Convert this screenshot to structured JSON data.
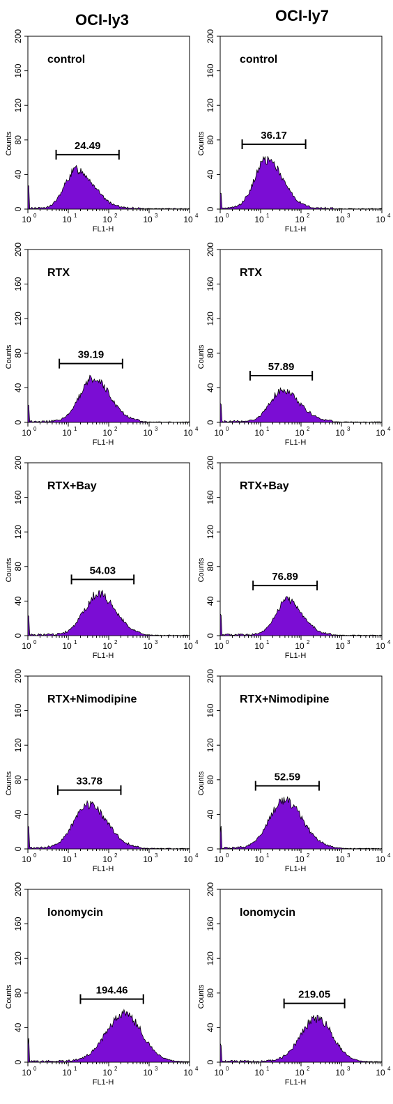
{
  "columns": [
    {
      "title": "OCI-ly3"
    },
    {
      "title": "OCI-ly7"
    }
  ],
  "colors": {
    "fill": "#7B0DD4",
    "outline": "#000000"
  },
  "chart_data": [
    {
      "type": "area",
      "column": "OCI-ly3",
      "label": "control",
      "gate_value": "24.49",
      "gate_range": [
        5,
        180
      ],
      "xlabel": "FL1-H",
      "ylabel": "Counts",
      "xscale": "log",
      "xlim": [
        1,
        10000
      ],
      "ylim": [
        0,
        200
      ],
      "x_ticks": [
        "10",
        "10",
        "10",
        "10",
        "10"
      ],
      "x_tick_exp": [
        "0",
        "1",
        "2",
        "3",
        "4"
      ],
      "y_ticks": [
        "0",
        "40",
        "80",
        "120",
        "160",
        "200"
      ],
      "peak_x": 16,
      "peak_y": 45,
      "spread": 0.42,
      "skew": 0.55
    },
    {
      "type": "area",
      "column": "OCI-ly7",
      "label": "control",
      "gate_value": "36.17",
      "gate_range": [
        3.5,
        130
      ],
      "xlabel": "FL1-H",
      "ylabel": "Counts",
      "xscale": "log",
      "xlim": [
        1,
        10000
      ],
      "ylim": [
        0,
        200
      ],
      "x_ticks": [
        "10",
        "10",
        "10",
        "10",
        "10"
      ],
      "x_tick_exp": [
        "0",
        "1",
        "2",
        "3",
        "4"
      ],
      "y_ticks": [
        "0",
        "40",
        "80",
        "120",
        "160",
        "200"
      ],
      "peak_x": 14,
      "peak_y": 57,
      "spread": 0.4,
      "skew": 0.6
    },
    {
      "type": "area",
      "column": "OCI-ly3",
      "label": "RTX",
      "gate_value": "39.19",
      "gate_range": [
        6,
        220
      ],
      "xlabel": "FL1-H",
      "ylabel": "Counts",
      "xscale": "log",
      "xlim": [
        1,
        10000
      ],
      "ylim": [
        0,
        200
      ],
      "x_ticks": [
        "10",
        "10",
        "10",
        "10",
        "10"
      ],
      "x_tick_exp": [
        "0",
        "1",
        "2",
        "3",
        "4"
      ],
      "y_ticks": [
        "0",
        "40",
        "80",
        "120",
        "160",
        "200"
      ],
      "peak_x": 40,
      "peak_y": 50,
      "spread": 0.42,
      "skew": 0.65
    },
    {
      "type": "area",
      "column": "OCI-ly7",
      "label": "RTX",
      "gate_value": "57.89",
      "gate_range": [
        5.5,
        190
      ],
      "xlabel": "FL1-H",
      "ylabel": "Counts",
      "xscale": "log",
      "xlim": [
        1,
        10000
      ],
      "ylim": [
        0,
        200
      ],
      "x_ticks": [
        "10",
        "10",
        "10",
        "10",
        "10"
      ],
      "x_tick_exp": [
        "0",
        "1",
        "2",
        "3",
        "4"
      ],
      "y_ticks": [
        "0",
        "40",
        "80",
        "120",
        "160",
        "200"
      ],
      "peak_x": 35,
      "peak_y": 36,
      "spread": 0.42,
      "skew": 0.6
    },
    {
      "type": "area",
      "column": "OCI-ly3",
      "label": "RTX+Bay",
      "gate_value": "54.03",
      "gate_range": [
        12,
        420
      ],
      "xlabel": "FL1-H",
      "ylabel": "Counts",
      "xscale": "log",
      "xlim": [
        1,
        10000
      ],
      "ylim": [
        0,
        200
      ],
      "x_ticks": [
        "10",
        "10",
        "10",
        "10",
        "10"
      ],
      "x_tick_exp": [
        "0",
        "1",
        "2",
        "3",
        "4"
      ],
      "y_ticks": [
        "0",
        "40",
        "80",
        "120",
        "160",
        "200"
      ],
      "peak_x": 55,
      "peak_y": 47,
      "spread": 0.42,
      "skew": 0.7
    },
    {
      "type": "area",
      "column": "OCI-ly7",
      "label": "RTX+Bay",
      "gate_value": "76.89",
      "gate_range": [
        6.5,
        250
      ],
      "xlabel": "FL1-H",
      "ylabel": "Counts",
      "xscale": "log",
      "xlim": [
        1,
        10000
      ],
      "ylim": [
        0,
        200
      ],
      "x_ticks": [
        "10",
        "10",
        "10",
        "10",
        "10"
      ],
      "x_tick_exp": [
        "0",
        "1",
        "2",
        "3",
        "4"
      ],
      "y_ticks": [
        "0",
        "40",
        "80",
        "120",
        "160",
        "200"
      ],
      "peak_x": 45,
      "peak_y": 40,
      "spread": 0.38,
      "skew": 0.6
    },
    {
      "type": "area",
      "column": "OCI-ly3",
      "label": "RTX+Nimodipine",
      "gate_value": "33.78",
      "gate_range": [
        5.5,
        200
      ],
      "xlabel": "FL1-H",
      "ylabel": "Counts",
      "xscale": "log",
      "xlim": [
        1,
        10000
      ],
      "ylim": [
        0,
        200
      ],
      "x_ticks": [
        "10",
        "10",
        "10",
        "10",
        "10"
      ],
      "x_tick_exp": [
        "0",
        "1",
        "2",
        "3",
        "4"
      ],
      "y_ticks": [
        "0",
        "40",
        "80",
        "120",
        "160",
        "200"
      ],
      "peak_x": 32,
      "peak_y": 50,
      "spread": 0.45,
      "skew": 0.7
    },
    {
      "type": "area",
      "column": "OCI-ly7",
      "label": "RTX+Nimodipine",
      "gate_value": "52.59",
      "gate_range": [
        7.5,
        280
      ],
      "xlabel": "FL1-H",
      "ylabel": "Counts",
      "xscale": "log",
      "xlim": [
        1,
        10000
      ],
      "ylim": [
        0,
        200
      ],
      "x_ticks": [
        "10",
        "10",
        "10",
        "10",
        "10"
      ],
      "x_tick_exp": [
        "0",
        "1",
        "2",
        "3",
        "4"
      ],
      "y_ticks": [
        "0",
        "40",
        "80",
        "120",
        "160",
        "200"
      ],
      "peak_x": 38,
      "peak_y": 55,
      "spread": 0.45,
      "skew": 0.7
    },
    {
      "type": "area",
      "column": "OCI-ly3",
      "label": "Ionomycin",
      "gate_value": "194.46",
      "gate_range": [
        20,
        720
      ],
      "xlabel": "FL1-H",
      "ylabel": "Counts",
      "xscale": "log",
      "xlim": [
        1,
        10000
      ],
      "ylim": [
        0,
        200
      ],
      "x_ticks": [
        "10",
        "10",
        "10",
        "10",
        "10"
      ],
      "x_tick_exp": [
        "0",
        "1",
        "2",
        "3",
        "4"
      ],
      "y_ticks": [
        "0",
        "40",
        "80",
        "120",
        "160",
        "200"
      ],
      "peak_x": 230,
      "peak_y": 55,
      "spread": 0.45,
      "skew": 0.85
    },
    {
      "type": "area",
      "column": "OCI-ly7",
      "label": "Ionomycin",
      "gate_value": "219.05",
      "gate_range": [
        38,
        1200
      ],
      "xlabel": "FL1-H",
      "ylabel": "Counts",
      "xscale": "log",
      "xlim": [
        1,
        10000
      ],
      "ylim": [
        0,
        200
      ],
      "x_ticks": [
        "10",
        "10",
        "10",
        "10",
        "10"
      ],
      "x_tick_exp": [
        "0",
        "1",
        "2",
        "3",
        "4"
      ],
      "y_ticks": [
        "0",
        "40",
        "80",
        "120",
        "160",
        "200"
      ],
      "peak_x": 240,
      "peak_y": 50,
      "spread": 0.4,
      "skew": 0.85
    }
  ]
}
